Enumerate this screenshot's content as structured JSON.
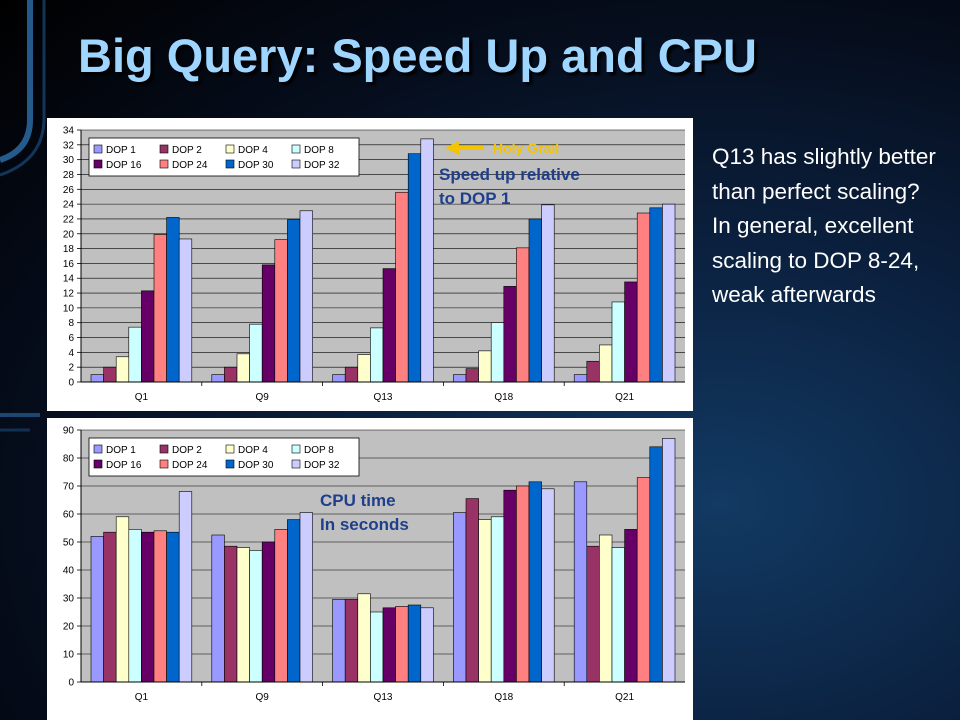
{
  "slide": {
    "title": "Big Query: Speed Up and CPU",
    "notes": [
      "Q13 has slightly better than perfect scaling?",
      "In general, excellent scaling to DOP 8-24, weak afterwards"
    ]
  },
  "colors": {
    "series": [
      "#9999ff",
      "#993366",
      "#ffffcc",
      "#ccffff",
      "#660066",
      "#ff8080",
      "#0066cc",
      "#ccccff"
    ],
    "annotation_blue": "#1f3f8c",
    "holy_grail_arrow": "#f3c400",
    "title": "#9fd6ff"
  },
  "chart_data": [
    {
      "type": "bar",
      "categories": [
        "Q1",
        "Q9",
        "Q13",
        "Q18",
        "Q21"
      ],
      "ylim": [
        0,
        34
      ],
      "yticks": [
        0,
        2,
        4,
        6,
        8,
        10,
        12,
        14,
        16,
        18,
        20,
        22,
        24,
        26,
        28,
        30,
        32,
        34
      ],
      "legend_position": "top-left",
      "grid": true,
      "annotations": [
        "Holy Grail",
        "Speed up relative to DOP 1"
      ],
      "series": [
        {
          "name": "DOP 1",
          "values": [
            1,
            1,
            1,
            1,
            1
          ]
        },
        {
          "name": "DOP 2",
          "values": [
            2,
            2,
            2,
            1.8,
            2.8
          ]
        },
        {
          "name": "DOP 4",
          "values": [
            3.4,
            3.8,
            3.7,
            4.2,
            5
          ]
        },
        {
          "name": "DOP 8",
          "values": [
            7.4,
            7.8,
            7.3,
            8,
            10.8
          ]
        },
        {
          "name": "DOP 16",
          "values": [
            12.3,
            15.8,
            15.3,
            12.9,
            13.5
          ]
        },
        {
          "name": "DOP 24",
          "values": [
            19.9,
            19.2,
            25.6,
            18.1,
            22.8
          ]
        },
        {
          "name": "DOP 30",
          "values": [
            22.2,
            21.9,
            30.8,
            22,
            23.5
          ]
        },
        {
          "name": "DOP 32",
          "values": [
            19.3,
            23.1,
            32.8,
            23.9,
            24
          ]
        }
      ]
    },
    {
      "type": "bar",
      "categories": [
        "Q1",
        "Q9",
        "Q13",
        "Q18",
        "Q21"
      ],
      "ylim": [
        0,
        90
      ],
      "yticks": [
        0,
        10,
        20,
        30,
        40,
        50,
        60,
        70,
        80,
        90
      ],
      "legend_position": "top-left",
      "grid": true,
      "annotations": [
        "CPU time",
        "In seconds"
      ],
      "series": [
        {
          "name": "DOP 1",
          "values": [
            52,
            52.5,
            29.5,
            60.5,
            71.5
          ]
        },
        {
          "name": "DOP 2",
          "values": [
            53.5,
            48.5,
            29.5,
            65.5,
            48.5
          ]
        },
        {
          "name": "DOP 4",
          "values": [
            59,
            48,
            31.5,
            58,
            52.5
          ]
        },
        {
          "name": "DOP 8",
          "values": [
            54.5,
            47,
            25,
            59,
            48
          ]
        },
        {
          "name": "DOP 16",
          "values": [
            53.5,
            50,
            26.5,
            68.5,
            54.5
          ]
        },
        {
          "name": "DOP 24",
          "values": [
            54,
            54.5,
            27,
            70,
            73
          ]
        },
        {
          "name": "DOP 30",
          "values": [
            53.5,
            58,
            27.5,
            71.5,
            84
          ]
        },
        {
          "name": "DOP 32",
          "values": [
            68,
            60.5,
            26.5,
            69,
            87
          ]
        }
      ]
    }
  ]
}
